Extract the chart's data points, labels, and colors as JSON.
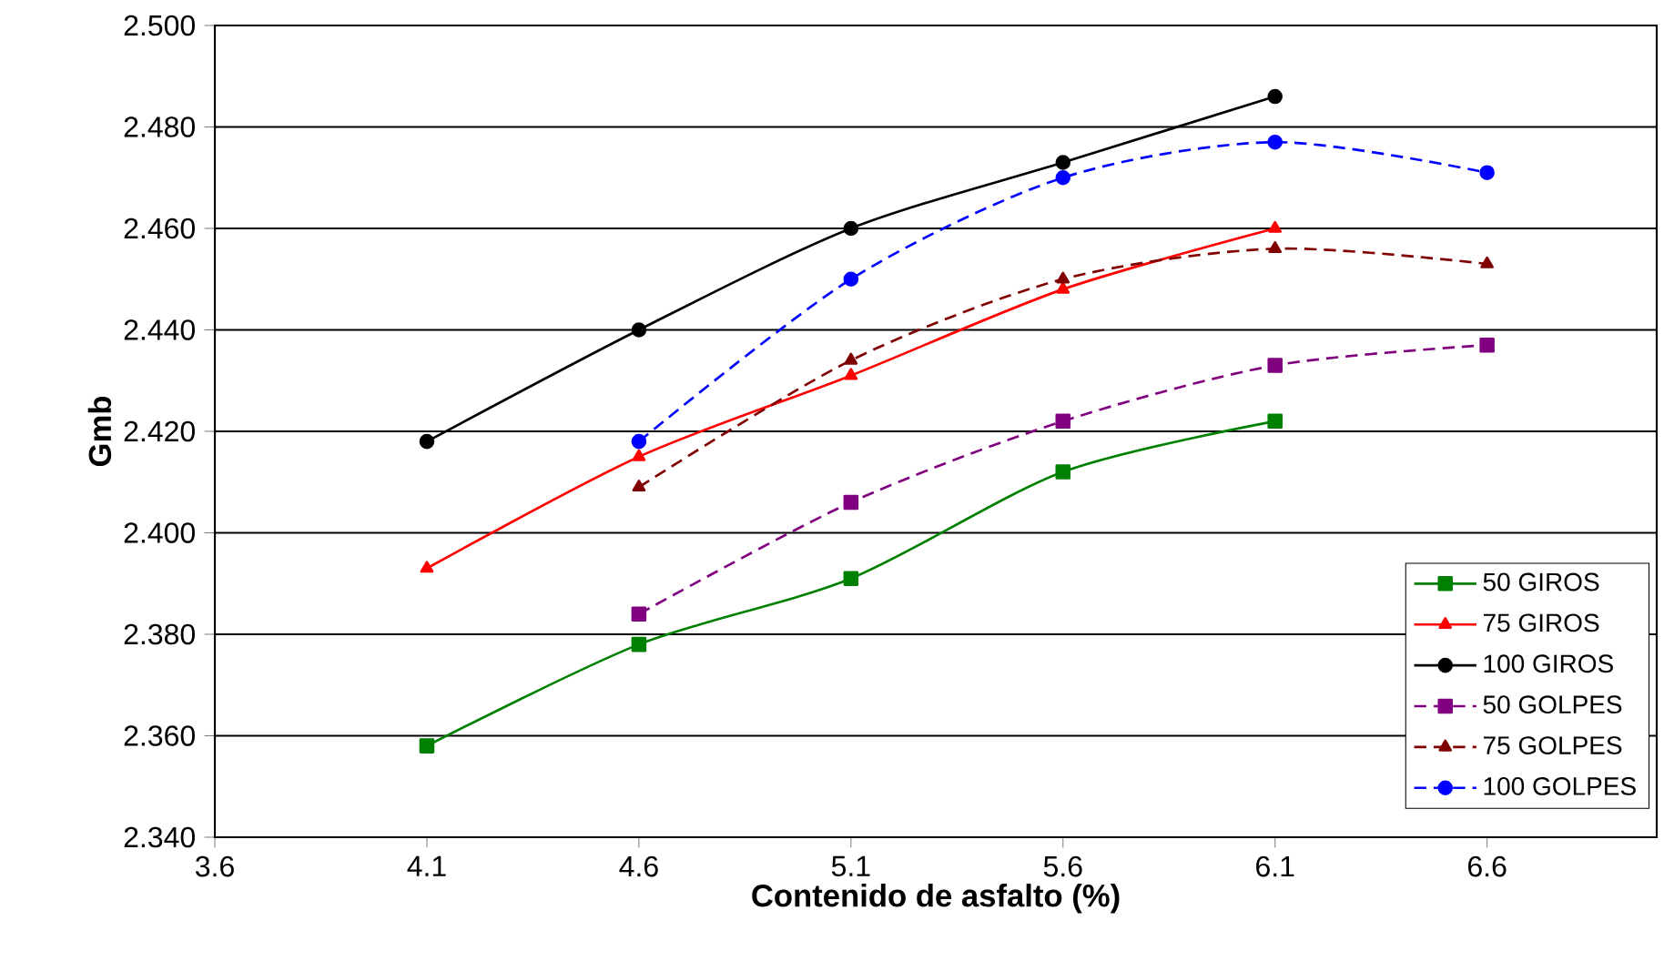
{
  "chart_data": {
    "type": "line",
    "xlabel": "Contenido de asfalto (%)",
    "ylabel": "Gmb",
    "xlim": [
      3.6,
      7.0
    ],
    "xticks": [
      3.6,
      4.1,
      4.6,
      5.1,
      5.6,
      6.1,
      6.6
    ],
    "ylim": [
      2.34,
      2.5
    ],
    "yticks": [
      {
        "value": 2.34,
        "label": "2.340"
      },
      {
        "value": 2.36,
        "label": "2.360"
      },
      {
        "value": 2.38,
        "label": "2.380"
      },
      {
        "value": 2.4,
        "label": "2.400"
      },
      {
        "value": 2.42,
        "label": "2.420"
      },
      {
        "value": 2.44,
        "label": "2.440"
      },
      {
        "value": 2.46,
        "label": "2.460"
      },
      {
        "value": 2.48,
        "label": "2.480"
      },
      {
        "value": 2.5,
        "label": "2.500"
      }
    ],
    "grid": "y",
    "legend": "bottom right",
    "series": [
      {
        "name": "50 GIROS",
        "color": "#008000",
        "marker": "square",
        "line_style": "solid",
        "x": [
          4.1,
          4.6,
          5.1,
          5.6,
          6.1
        ],
        "values": [
          2.358,
          2.378,
          2.391,
          2.412,
          2.422
        ]
      },
      {
        "name": "75 GIROS",
        "color": "#ff0000",
        "marker": "triangle",
        "line_style": "solid",
        "x": [
          4.1,
          4.6,
          5.1,
          5.6,
          6.1
        ],
        "values": [
          2.393,
          2.415,
          2.431,
          2.448,
          2.46
        ]
      },
      {
        "name": "100 GIROS",
        "color": "#000000",
        "marker": "circle",
        "line_style": "solid",
        "x": [
          4.1,
          4.6,
          5.1,
          5.6,
          6.1
        ],
        "values": [
          2.418,
          2.44,
          2.46,
          2.473,
          2.486
        ]
      },
      {
        "name": "50 GOLPES",
        "color": "#800080",
        "marker": "square",
        "line_style": "dashed",
        "x": [
          4.6,
          5.1,
          5.6,
          6.1,
          6.6
        ],
        "values": [
          2.384,
          2.406,
          2.422,
          2.433,
          2.437
        ]
      },
      {
        "name": "75 GOLPES",
        "color": "#800000",
        "marker": "triangle",
        "line_style": "dashed",
        "x": [
          4.6,
          5.1,
          5.6,
          6.1,
          6.6
        ],
        "values": [
          2.409,
          2.434,
          2.45,
          2.456,
          2.453
        ]
      },
      {
        "name": "100 GOLPES",
        "color": "#0000ff",
        "marker": "circle",
        "line_style": "dashed",
        "x": [
          4.6,
          5.1,
          5.6,
          6.1,
          6.6
        ],
        "values": [
          2.418,
          2.45,
          2.47,
          2.477,
          2.471
        ]
      }
    ]
  }
}
